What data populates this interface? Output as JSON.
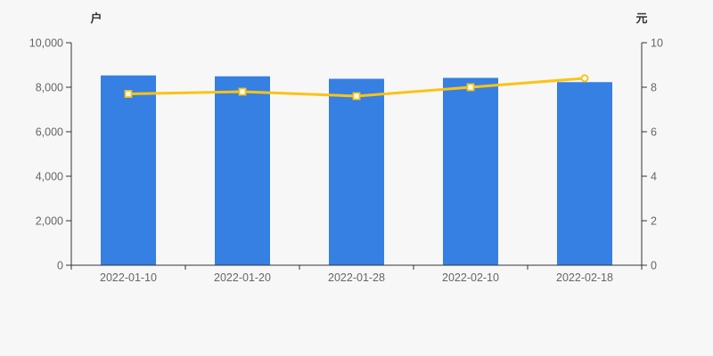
{
  "page": {
    "background": "#f7f7f8"
  },
  "chart_data": {
    "type": "bar+line",
    "categories": [
      "2022-01-10",
      "2022-01-20",
      "2022-01-28",
      "2022-02-10",
      "2022-02-18"
    ],
    "series": [
      {
        "id": "bar-series",
        "type": "bar",
        "axis": "left",
        "values": [
          8530,
          8490,
          8380,
          8420,
          8230
        ],
        "color": "#3580e2"
      },
      {
        "id": "line-series",
        "type": "line",
        "axis": "right",
        "values": [
          7.7,
          7.8,
          7.6,
          8.0,
          8.4
        ],
        "color": "#fbc314",
        "marker_fill": "#ffffff"
      }
    ],
    "left_axis": {
      "name": "户",
      "min": 0,
      "max": 10000,
      "tick_step": 2000,
      "tick_labels": [
        "0",
        "2,000",
        "4,000",
        "6,000",
        "8,000",
        "10,000"
      ]
    },
    "right_axis": {
      "name": "元",
      "min": 0,
      "max": 10,
      "tick_step": 2,
      "tick_labels": [
        "0",
        "2",
        "4",
        "6",
        "8",
        "10"
      ]
    },
    "grid": false,
    "legend": false,
    "axis_color": "#333333",
    "tick_label_color": "#666666"
  }
}
